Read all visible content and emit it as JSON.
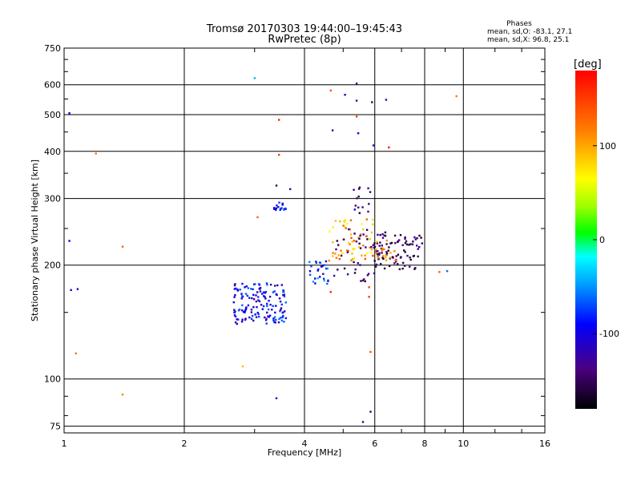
{
  "chart_data": {
    "type": "scatter",
    "title": "Tromsø 20170303 19:44:00–19:45:43",
    "subtitle": "RwPretec (8p)",
    "xlabel": "Frequency [MHz]",
    "ylabel": "Stationary phase Virtual Height [km]",
    "x_scale": "log",
    "y_scale": "log",
    "xlim": [
      1,
      16
    ],
    "ylim": [
      72,
      750
    ],
    "x_ticks": [
      1,
      2,
      4,
      6,
      8,
      10,
      16
    ],
    "y_ticks": [
      75,
      100,
      200,
      300,
      400,
      500,
      600,
      750
    ],
    "grid": true,
    "stats": {
      "heading": "Phases",
      "line1": "mean, sd,O: -83.1, 27.1",
      "line2": "mean, sd,X:  96.8, 25.1"
    },
    "colorbar": {
      "label": "[deg]",
      "range": [
        -180,
        180
      ],
      "ticks": [
        100,
        0,
        -100
      ]
    },
    "clusters": [
      {
        "f": [
          2.65,
          3.6
        ],
        "h": [
          140,
          180
        ],
        "phase": [
          -130,
          -60
        ],
        "n": 150
      },
      {
        "f": [
          3.35,
          3.7
        ],
        "h": [
          280,
          295
        ],
        "phase": [
          -120,
          -70
        ],
        "n": 18
      },
      {
        "f": [
          4.1,
          4.6
        ],
        "h": [
          178,
          205
        ],
        "phase": [
          -140,
          -40
        ],
        "n": 28
      },
      {
        "f": [
          4.6,
          6.0
        ],
        "h": [
          205,
          265
        ],
        "phase": [
          60,
          150
        ],
        "n": 60
      },
      {
        "f": [
          4.7,
          6.2
        ],
        "h": [
          180,
          250
        ],
        "phase": [
          -170,
          -120
        ],
        "n": 40
      },
      {
        "f": [
          6.0,
          7.9
        ],
        "h": [
          195,
          245
        ],
        "phase": [
          -170,
          -120
        ],
        "n": 85
      },
      {
        "f": [
          6.0,
          6.8
        ],
        "h": [
          205,
          235
        ],
        "phase": [
          90,
          140
        ],
        "n": 18
      },
      {
        "f": [
          5.3,
          5.9
        ],
        "h": [
          270,
          330
        ],
        "phase": [
          -160,
          -110
        ],
        "n": 14
      }
    ],
    "points": [
      {
        "f": 1.03,
        "h": 505,
        "phase": -110
      },
      {
        "f": 1.03,
        "h": 232,
        "phase": -100
      },
      {
        "f": 1.04,
        "h": 172,
        "phase": -110
      },
      {
        "f": 1.08,
        "h": 173,
        "phase": -110
      },
      {
        "f": 1.07,
        "h": 117,
        "phase": 120
      },
      {
        "f": 1.2,
        "h": 395,
        "phase": 120
      },
      {
        "f": 1.4,
        "h": 224,
        "phase": 130
      },
      {
        "f": 1.4,
        "h": 91,
        "phase": 115
      },
      {
        "f": 2.8,
        "h": 108,
        "phase": 90
      },
      {
        "f": 3.0,
        "h": 625,
        "phase": -40
      },
      {
        "f": 3.05,
        "h": 268,
        "phase": 130
      },
      {
        "f": 3.4,
        "h": 89,
        "phase": -110
      },
      {
        "f": 3.45,
        "h": 485,
        "phase": 160
      },
      {
        "f": 3.45,
        "h": 392,
        "phase": 150
      },
      {
        "f": 3.4,
        "h": 325,
        "phase": -150
      },
      {
        "f": 3.68,
        "h": 318,
        "phase": -130
      },
      {
        "f": 4.65,
        "h": 580,
        "phase": 140
      },
      {
        "f": 4.7,
        "h": 455,
        "phase": -120
      },
      {
        "f": 5.05,
        "h": 565,
        "phase": -110
      },
      {
        "f": 5.4,
        "h": 605,
        "phase": -120
      },
      {
        "f": 5.4,
        "h": 545,
        "phase": -130
      },
      {
        "f": 5.4,
        "h": 495,
        "phase": 150
      },
      {
        "f": 5.45,
        "h": 447,
        "phase": -100
      },
      {
        "f": 5.9,
        "h": 540,
        "phase": -150
      },
      {
        "f": 5.95,
        "h": 415,
        "phase": -120
      },
      {
        "f": 6.4,
        "h": 548,
        "phase": -130
      },
      {
        "f": 6.5,
        "h": 410,
        "phase": 170
      },
      {
        "f": 9.6,
        "h": 560,
        "phase": 120
      },
      {
        "f": 5.6,
        "h": 77,
        "phase": -130
      },
      {
        "f": 5.85,
        "h": 82,
        "phase": -150
      },
      {
        "f": 5.85,
        "h": 118,
        "phase": 140
      },
      {
        "f": 5.8,
        "h": 165,
        "phase": 150
      },
      {
        "f": 5.8,
        "h": 175,
        "phase": 150
      },
      {
        "f": 4.65,
        "h": 170,
        "phase": 160
      },
      {
        "f": 8.7,
        "h": 192,
        "phase": 130
      },
      {
        "f": 9.1,
        "h": 193,
        "phase": -60
      }
    ]
  }
}
